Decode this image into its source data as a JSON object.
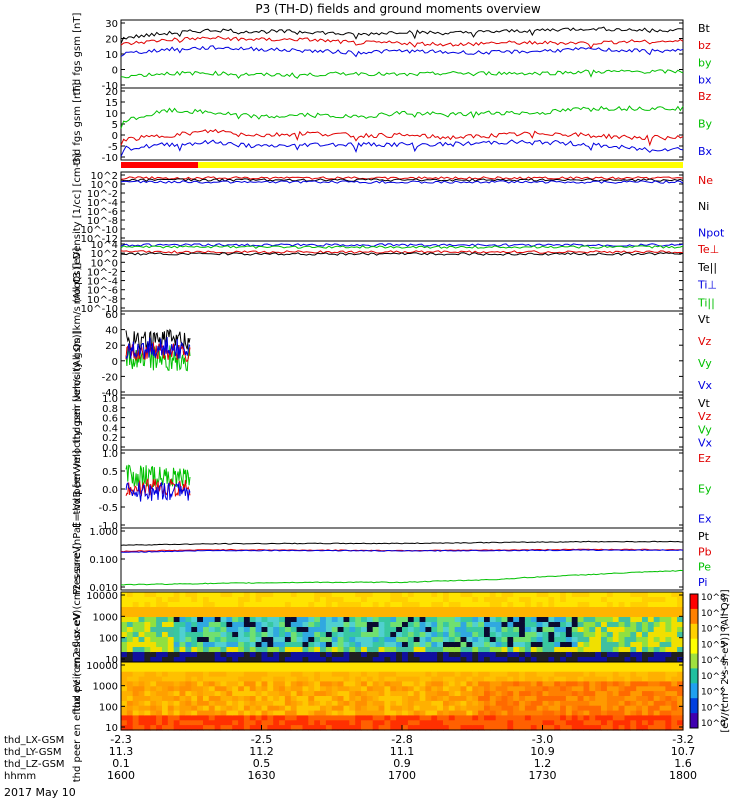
{
  "title": "P3 (TH-D) fields and ground moments overview",
  "date_label": "2017 May 10",
  "colorbar_label": "[eV/(cm^2-s-sr-eV)] (All Qs)]",
  "colorbar_ticks": [
    "10^8",
    "10^7",
    "10^6",
    "10^5",
    "10^4",
    "10^3",
    "10^2",
    "10^1",
    "10^0"
  ],
  "ephemeris": {
    "row_labels": [
      "thd_LX-GSM",
      "thd_LY-GSM",
      "thd_LZ-GSM",
      "hhmm"
    ],
    "columns": [
      {
        "values": [
          "-2.3",
          "11.3",
          "0.1",
          "1600"
        ]
      },
      {
        "values": [
          "-2.5",
          "11.2",
          "0.5",
          "1630"
        ]
      },
      {
        "values": [
          "-2.8",
          "11.1",
          "0.9",
          "1700"
        ]
      },
      {
        "values": [
          "-3.0",
          "10.9",
          "1.2",
          "1730"
        ]
      },
      {
        "values": [
          "-3.2",
          "10.7",
          "1.6",
          "1800"
        ]
      }
    ]
  },
  "panels": [
    {
      "ylabel": "thd fgs gsm [nT]",
      "yticks": [
        "30",
        "20",
        "10",
        "0",
        "-10"
      ],
      "legend": [
        {
          "text": "Bt",
          "color": "#000000"
        },
        {
          "text": "bz",
          "color": "#e00000"
        },
        {
          "text": "by",
          "color": "#00c000"
        },
        {
          "text": "bx",
          "color": "#0000e0"
        }
      ]
    },
    {
      "ylabel": "thd fgs gsm [nT]",
      "yticks": [
        "20",
        "15",
        "10",
        "5",
        "0",
        "-5",
        "-10"
      ],
      "legend": [
        {
          "text": "Bz",
          "color": "#e00000"
        },
        {
          "text": "By",
          "color": "#00c000"
        },
        {
          "text": "Bx",
          "color": "#0000e0"
        }
      ]
    },
    {
      "ylabel": "Density [1/cc] [cm-3]",
      "yticks": [
        "10^2",
        "10^0",
        "10^-2",
        "10^-4",
        "10^-6",
        "10^-8",
        "10^-10",
        "10^-12"
      ],
      "legend": [
        {
          "text": "Ne",
          "color": "#e00000"
        },
        {
          "text": "Ni",
          "color": "#000000"
        },
        {
          "text": "Npot",
          "color": "#0000e0"
        }
      ]
    },
    {
      "ylabel": "moqt3 [eV]",
      "yticks": [
        "10^4",
        "10^2",
        "10^0",
        "10^-2",
        "10^-4",
        "10^-6",
        "10^-8",
        "10^-10"
      ],
      "legend": [
        {
          "text": "Te⊥",
          "color": "#e00000"
        },
        {
          "text": "Te||",
          "color": "#000000"
        },
        {
          "text": "Ti⊥",
          "color": "#0000e0"
        },
        {
          "text": "Ti||",
          "color": "#00c000"
        }
      ]
    },
    {
      "ylabel": "thd peir velocity gsm [km/s (All Qs)]",
      "yticks": [
        "60",
        "40",
        "20",
        "0",
        "-20",
        "-40"
      ],
      "legend": [
        {
          "text": "Vt",
          "color": "#000000"
        },
        {
          "text": "Vz",
          "color": "#e00000"
        },
        {
          "text": "Vy",
          "color": "#00c000"
        },
        {
          "text": "Vx",
          "color": "#0000e0"
        }
      ]
    },
    {
      "ylabel": "thd peer velocity gsm [km/s (All Qs)]",
      "yticks": [
        "1.0",
        "0.8",
        "0.6",
        "0.4",
        "0.2",
        "0.0"
      ],
      "legend": [
        {
          "text": "Vt",
          "color": "#000000"
        },
        {
          "text": "Vz",
          "color": "#e00000"
        },
        {
          "text": "Vy",
          "color": "#00c000"
        },
        {
          "text": "Vx",
          "color": "#0000e0"
        }
      ]
    },
    {
      "ylabel": "E=-VxB [mV/m]",
      "yticks": [
        "1.0",
        "0.5",
        "0.0",
        "-0.5",
        "-1.0"
      ],
      "legend": [
        {
          "text": "Ez",
          "color": "#e00000"
        },
        {
          "text": "Ey",
          "color": "#00c000"
        },
        {
          "text": "Ex",
          "color": "#0000e0"
        }
      ]
    },
    {
      "ylabel": "Pressure [nPa]",
      "yticks": [
        "1.000",
        "0.100",
        "0.010"
      ],
      "legend": [
        {
          "text": "Pt",
          "color": "#000000"
        },
        {
          "text": "Pb",
          "color": "#e00000"
        },
        {
          "text": "Pe",
          "color": "#00c000"
        },
        {
          "text": "Pi",
          "color": "#0000e0"
        }
      ]
    },
    {
      "ylabel": "thd peir en eflux eV (cm2-s-sr-eV)",
      "yticks": [
        "10000",
        "1000",
        "100",
        "10"
      ],
      "legend": []
    },
    {
      "ylabel": "thd peer en eflux eV (cm2-s-sr-eV)",
      "yticks": [
        "10000",
        "1000",
        "100",
        "10"
      ],
      "legend": []
    }
  ],
  "chart_data": {
    "type": "line",
    "title": "P3 (TH-D) fields and ground moments overview",
    "x": {
      "ticks": [
        "1600",
        "1630",
        "1700",
        "1730",
        "1800"
      ],
      "label": "hhmm",
      "date": "2017 May 10"
    },
    "panels": [
      {
        "name": "fgs_gsm",
        "yrange": [
          -10,
          30
        ],
        "series": [
          {
            "name": "Bt",
            "color": "#000000",
            "x": [
              1600,
              1610,
              1620,
              1630,
              1640,
              1650,
              1700,
              1710,
              1720,
              1730,
              1740,
              1750,
              1800
            ],
            "values": [
              20,
              23,
              25,
              24,
              24,
              22,
              24,
              23,
              24,
              25,
              26,
              25,
              25
            ]
          },
          {
            "name": "bz",
            "color": "#e00000",
            "x": [
              1600,
              1610,
              1620,
              1630,
              1640,
              1650,
              1700,
              1710,
              1720,
              1730,
              1740,
              1750,
              1800
            ],
            "values": [
              16,
              19,
              20,
              19,
              19,
              17,
              17,
              16,
              17,
              17,
              17,
              18,
              18
            ]
          },
          {
            "name": "by",
            "color": "#00c000",
            "x": [
              1600,
              1610,
              1620,
              1630,
              1640,
              1650,
              1700,
              1710,
              1720,
              1730,
              1740,
              1750,
              1800
            ],
            "values": [
              -4,
              -2,
              -2,
              -3,
              -3,
              -2,
              -3,
              -2,
              -2,
              -2,
              -1,
              -1,
              -1
            ]
          },
          {
            "name": "bx",
            "color": "#0000e0",
            "x": [
              1600,
              1610,
              1620,
              1630,
              1640,
              1650,
              1700,
              1710,
              1720,
              1730,
              1740,
              1750,
              1800
            ],
            "values": [
              10,
              13,
              14,
              13,
              12,
              11,
              12,
              11,
              11,
              12,
              13,
              12,
              12
            ]
          }
        ]
      },
      {
        "name": "fgs_gsm_2",
        "yrange": [
          -10,
          20
        ],
        "series": [
          {
            "name": "Bz",
            "color": "#e00000",
            "x": [
              1600,
              1610,
              1620,
              1630,
              1640,
              1650,
              1700,
              1710,
              1720,
              1730,
              1740,
              1750,
              1800
            ],
            "values": [
              -2,
              0,
              2,
              0,
              1,
              0,
              0,
              -1,
              0,
              1,
              0,
              -1,
              -1
            ]
          },
          {
            "name": "By",
            "color": "#00c000",
            "x": [
              1600,
              1610,
              1620,
              1630,
              1640,
              1650,
              1700,
              1710,
              1720,
              1730,
              1740,
              1750,
              1800
            ],
            "values": [
              6,
              11,
              10,
              8,
              9,
              8,
              10,
              9,
              10,
              10,
              12,
              12,
              12
            ]
          },
          {
            "name": "Bx",
            "color": "#0000e0",
            "x": [
              1600,
              1610,
              1620,
              1630,
              1640,
              1650,
              1700,
              1710,
              1720,
              1730,
              1740,
              1750,
              1800
            ],
            "values": [
              -6,
              -4,
              -3,
              -5,
              -4,
              -4,
              -4,
              -4,
              -3,
              -3,
              -4,
              -6,
              -6
            ]
          }
        ]
      },
      {
        "name": "pressure",
        "yrange": [
          0.005,
          2
        ],
        "log": true,
        "series": [
          {
            "name": "Pt",
            "color": "#000000",
            "x": [
              1600,
              1620,
              1640,
              1700,
              1720,
              1740,
              1800
            ],
            "values": [
              0.42,
              0.48,
              0.5,
              0.5,
              0.55,
              0.6,
              0.6
            ]
          },
          {
            "name": "Pb",
            "color": "#e00000",
            "x": [
              1600,
              1620,
              1640,
              1700,
              1720,
              1740,
              1800
            ],
            "values": [
              0.22,
              0.26,
              0.25,
              0.24,
              0.25,
              0.27,
              0.26
            ]
          },
          {
            "name": "Pe",
            "color": "#00c000",
            "x": [
              1600,
              1620,
              1640,
              1700,
              1720,
              1740,
              1800
            ],
            "values": [
              0.007,
              0.008,
              0.009,
              0.009,
              0.012,
              0.02,
              0.03
            ]
          },
          {
            "name": "Pi",
            "color": "#0000e0",
            "x": [
              1600,
              1620,
              1640,
              1700,
              1720,
              1740,
              1800
            ],
            "values": [
              0.2,
              0.24,
              0.24,
              0.23,
              0.24,
              0.25,
              0.25
            ]
          }
        ]
      }
    ]
  }
}
